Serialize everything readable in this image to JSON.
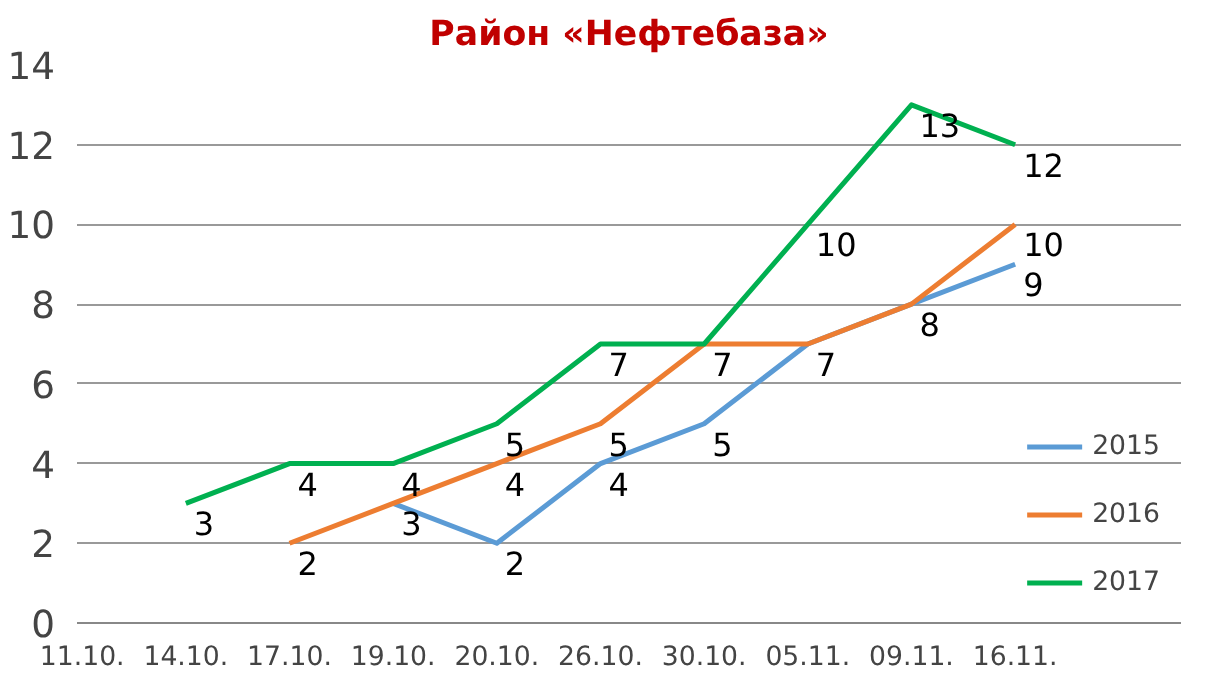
{
  "chart_data": {
    "type": "line",
    "title": "Район «Нефтебаза»",
    "categories": [
      "11.10.",
      "14.10.",
      "17.10.",
      "19.10.",
      "20.10.",
      "26.10.",
      "30.10.",
      "05.11.",
      "09.11.",
      "16.11."
    ],
    "series": [
      {
        "name": "2015",
        "color": "#5b9bd5",
        "values": [
          null,
          null,
          null,
          3,
          2,
          4,
          5,
          7,
          8,
          9
        ],
        "value_labels": [
          null,
          null,
          null,
          null,
          "2",
          "4",
          "5",
          null,
          null,
          "9"
        ]
      },
      {
        "name": "2016",
        "color": "#ed7d31",
        "values": [
          null,
          null,
          2,
          3,
          4,
          5,
          7,
          7,
          8,
          10
        ],
        "value_labels": [
          null,
          null,
          "2",
          "3",
          "4",
          "5",
          null,
          "7",
          "8",
          "10"
        ]
      },
      {
        "name": "2017",
        "color": "#00b050",
        "values": [
          null,
          3,
          4,
          4,
          5,
          7,
          7,
          10,
          13,
          12
        ],
        "value_labels": [
          null,
          "3",
          "4",
          "4",
          "5",
          "7",
          "7",
          "10",
          "13",
          "12"
        ]
      }
    ],
    "ylim": [
      0,
      14
    ],
    "yticks": [
      0,
      2,
      4,
      6,
      8,
      10,
      12,
      14
    ],
    "grid": "y",
    "legend": "bottom right",
    "marker": "none",
    "line_style": "solid"
  }
}
